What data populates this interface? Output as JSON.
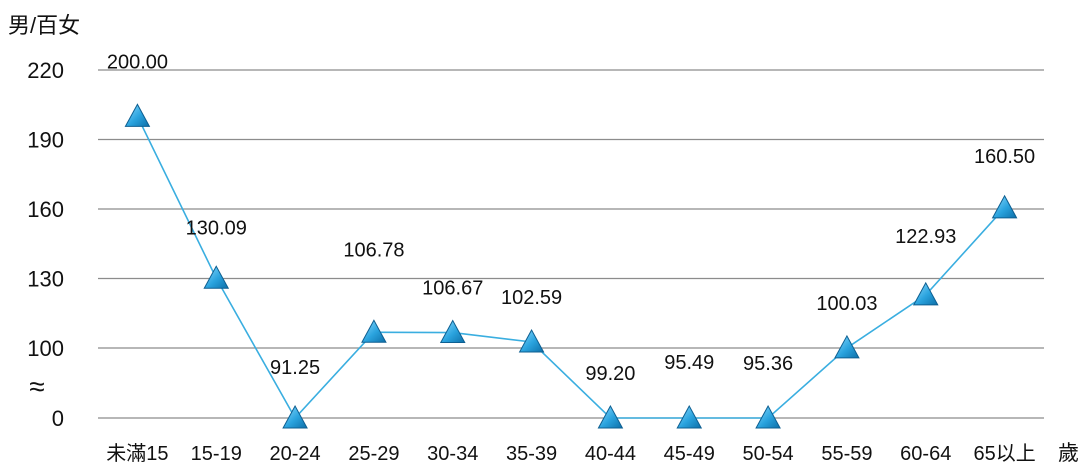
{
  "chart_data": {
    "type": "line",
    "ylabel": "男/百女",
    "xlabel": "歲",
    "categories": [
      "未滿15",
      "15-19",
      "20-24",
      "25-29",
      "30-34",
      "35-39",
      "40-44",
      "45-49",
      "50-54",
      "55-59",
      "60-64",
      "65以上"
    ],
    "values": [
      200.0,
      130.09,
      91.25,
      106.78,
      106.67,
      102.59,
      99.2,
      95.49,
      95.36,
      100.03,
      122.93,
      160.5
    ],
    "data_labels": [
      "200.00",
      "130.09",
      "91.25",
      "106.78",
      "106.67",
      "102.59",
      "99.20",
      "95.49",
      "95.36",
      "100.03",
      "122.93",
      "160.50"
    ],
    "yticks": [
      "220",
      "190",
      "160",
      "130",
      "100",
      "0"
    ],
    "axis_break_symbol": "≈",
    "ylim": [
      0,
      220
    ],
    "grid": true,
    "colors": {
      "line": "#3aaee0",
      "marker": "#2b9fd6",
      "grid": "#8c8c8c"
    }
  }
}
